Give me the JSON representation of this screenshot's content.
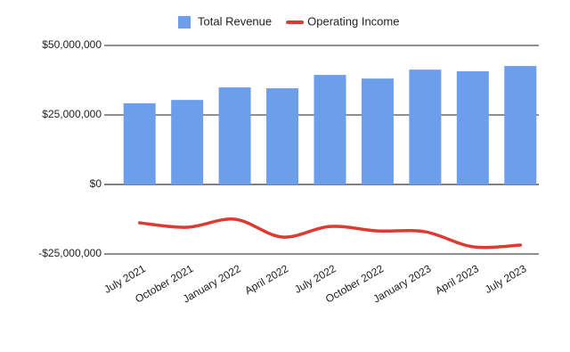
{
  "chart_data": {
    "type": "bar-line",
    "categories": [
      "July 2021",
      "October 2021",
      "January 2022",
      "April 2022",
      "July 2022",
      "October 2022",
      "January 2023",
      "April 2023",
      "July 2023"
    ],
    "series": [
      {
        "name": "Total Revenue",
        "type": "bar",
        "color": "#6d9eeb",
        "values": [
          29200000,
          30400000,
          34900000,
          34600000,
          39400000,
          38100000,
          41300000,
          40700000,
          42600000
        ]
      },
      {
        "name": "Operating Income",
        "type": "line",
        "color": "#dc3b32",
        "values": [
          -13800000,
          -15400000,
          -12500000,
          -18900000,
          -15100000,
          -16700000,
          -17000000,
          -22400000,
          -21800000
        ]
      }
    ],
    "ylim": [
      -25000000,
      50000000
    ],
    "yticks": [
      {
        "value": -25000000,
        "label": "-$25,000,000"
      },
      {
        "value": 0,
        "label": "$0"
      },
      {
        "value": 25000000,
        "label": "$25,000,000"
      },
      {
        "value": 50000000,
        "label": "$50,000,000"
      }
    ],
    "grid": true,
    "legend": "top"
  }
}
